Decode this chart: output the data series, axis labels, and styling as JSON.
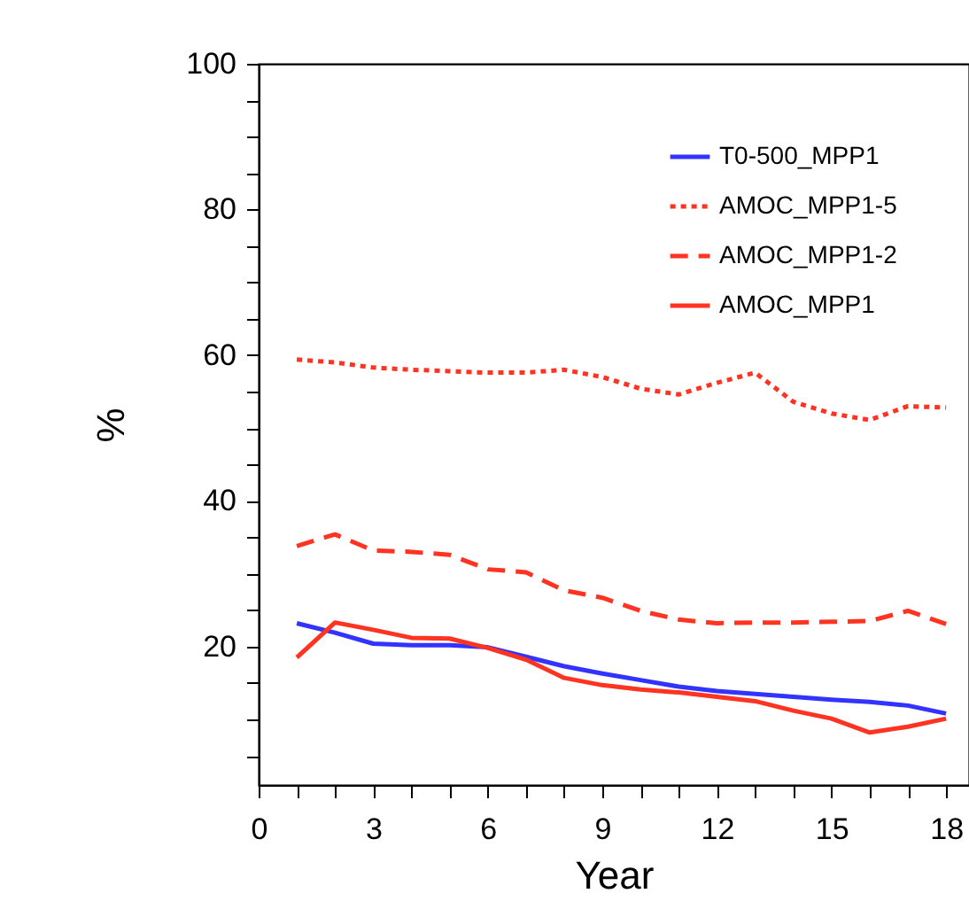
{
  "chart_data": {
    "type": "line",
    "xlabel": "Year",
    "ylabel": "%",
    "x": [
      1,
      2,
      3,
      4,
      5,
      6,
      7,
      8,
      9,
      10,
      11,
      12,
      13,
      14,
      15,
      16,
      17,
      18
    ],
    "xlim": [
      0,
      18.6
    ],
    "ylim": [
      1,
      100
    ],
    "xticks": [
      0,
      {
        "value": 1,
        "label": null
      },
      {
        "value": 2,
        "label": null
      },
      3,
      {
        "value": 4,
        "label": null
      },
      {
        "value": 5,
        "label": null
      },
      6,
      {
        "value": 7,
        "label": null
      },
      {
        "value": 8,
        "label": null
      },
      9,
      {
        "value": 10,
        "label": null
      },
      {
        "value": 11,
        "label": null
      },
      12,
      {
        "value": 13,
        "label": null
      },
      {
        "value": 14,
        "label": null
      },
      15,
      {
        "value": 16,
        "label": null
      },
      {
        "value": 17,
        "label": null
      },
      18
    ],
    "yticks": [
      {
        "value": 5,
        "label": null
      },
      {
        "value": 10,
        "label": null
      },
      {
        "value": 15,
        "label": null
      },
      20,
      {
        "value": 25,
        "label": null
      },
      {
        "value": 30,
        "label": null
      },
      {
        "value": 35,
        "label": null
      },
      40,
      {
        "value": 45,
        "label": null
      },
      {
        "value": 50,
        "label": null
      },
      {
        "value": 55,
        "label": null
      },
      60,
      {
        "value": 65,
        "label": null
      },
      {
        "value": 70,
        "label": null
      },
      {
        "value": 75,
        "label": null
      },
      80,
      {
        "value": 85,
        "label": null
      },
      {
        "value": 90,
        "label": null
      },
      {
        "value": 95,
        "label": null
      },
      100
    ],
    "grid": false,
    "legend": "top right",
    "marker": "none",
    "series": [
      {
        "name": "T0-500_MPP1",
        "color": "#3333ff",
        "line_style": "solid",
        "values": [
          23.2,
          21.9,
          20.4,
          20.2,
          20.2,
          19.9,
          18.6,
          17.3,
          16.3,
          15.4,
          14.5,
          13.9,
          13.5,
          13.1,
          12.7,
          12.4,
          11.9,
          10.8
        ]
      },
      {
        "name": "AMOC_MPP1-5",
        "color": "#ff3322",
        "line_style": "dotted",
        "values": [
          59.4,
          59.0,
          58.3,
          58.0,
          57.8,
          57.6,
          57.6,
          58.0,
          57.0,
          55.4,
          54.6,
          56.2,
          57.6,
          53.6,
          52.0,
          51.1,
          53.0,
          52.8
        ]
      },
      {
        "name": "AMOC_MPP1-2",
        "color": "#ff3322",
        "line_style": "dashed",
        "values": [
          33.8,
          35.4,
          33.2,
          33.0,
          32.6,
          30.6,
          30.2,
          27.7,
          26.7,
          24.9,
          23.7,
          23.2,
          23.3,
          23.3,
          23.4,
          23.5,
          24.9,
          23.1
        ]
      },
      {
        "name": "AMOC_MPP1",
        "color": "#ff3322",
        "line_style": "solid",
        "values": [
          18.5,
          23.3,
          22.3,
          21.2,
          21.1,
          19.8,
          18.2,
          15.7,
          14.7,
          14.1,
          13.7,
          13.1,
          12.5,
          11.2,
          10.1,
          8.2,
          9.0,
          10.1
        ]
      }
    ]
  }
}
